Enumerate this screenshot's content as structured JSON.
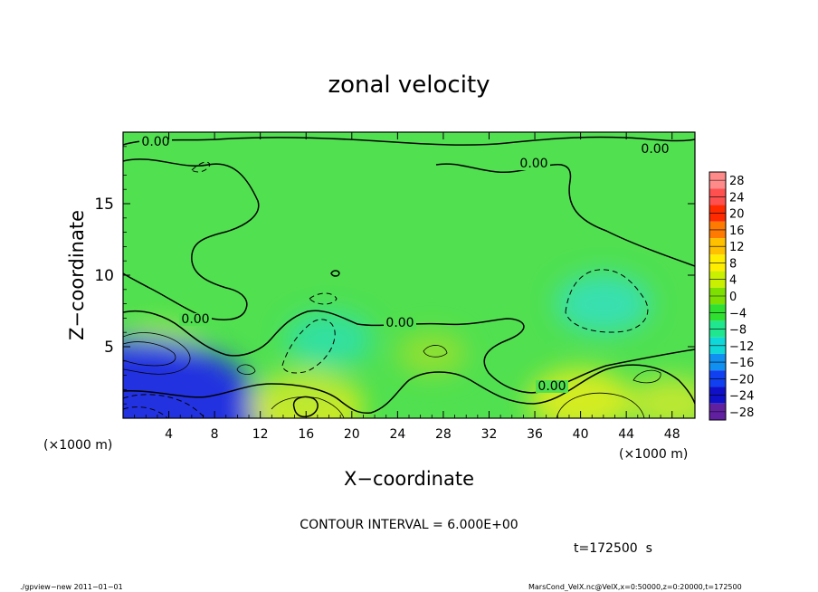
{
  "chart_data": {
    "type": "heatmap",
    "title": "zonal velocity",
    "xlabel": "X−coordinate",
    "ylabel": "Z−coordinate",
    "xunit_left": "(×1000 m)",
    "xunit_right": "(×1000 m)",
    "xlim": [
      0,
      50
    ],
    "ylim": [
      0,
      20
    ],
    "x_ticks": [
      4,
      8,
      12,
      16,
      20,
      24,
      28,
      32,
      36,
      40,
      44,
      48
    ],
    "y_ticks": [
      5,
      10,
      15
    ],
    "contour_interval_text": "CONTOUR INTERVAL = 6.000E+00",
    "time_text": "t=172500  s",
    "footer_left": "./gpview−new   2011−01−01",
    "footer_right": "MarsCond_VelX.nc@VelX,x=0:50000,z=0:20000,t=172500",
    "contour_labels": [
      "0.00",
      "0.00",
      "0.00",
      "0.00",
      "0.00",
      "0.00"
    ],
    "colorbar": {
      "levels": [
        "28",
        "24",
        "20",
        "16",
        "12",
        "8",
        "4",
        "0",
        "−4",
        "−8",
        "−12",
        "−16",
        "−20",
        "−24",
        "−28"
      ],
      "colors": [
        "#ff8a8a",
        "#ff5050",
        "#ff2a00",
        "#ff7a00",
        "#ffc000",
        "#ffee00",
        "#c8f000",
        "#7ee000",
        "#30e030",
        "#20e690",
        "#10d8d8",
        "#1090f0",
        "#1040f0",
        "#1010c8",
        "#6020a0"
      ]
    },
    "background_color": "#50e050",
    "anomalies": [
      {
        "x": 3,
        "z": 4.5,
        "v": 7,
        "color": "#b8ec30"
      },
      {
        "x": 2,
        "z": 0.8,
        "v": -16,
        "color": "#1a7ff0"
      },
      {
        "x": 1.5,
        "z": 0.3,
        "v": -24,
        "color": "#2030e0"
      },
      {
        "x": 16,
        "z": 0.8,
        "v": 9,
        "color": "#dcec10"
      },
      {
        "x": 16,
        "z": 1.5,
        "v": 6,
        "color": "#bce830"
      },
      {
        "x": 18,
        "z": 5.5,
        "v": -6,
        "color": "#30e0a0"
      },
      {
        "x": 42,
        "z": 8,
        "v": -7,
        "color": "#38e0b0"
      },
      {
        "x": 40,
        "z": 1.2,
        "v": 8,
        "color": "#d4ec20"
      },
      {
        "x": 48,
        "z": 1,
        "v": 6,
        "color": "#bce830"
      },
      {
        "x": 27,
        "z": 4.5,
        "v": 4,
        "color": "#90e030"
      }
    ]
  }
}
